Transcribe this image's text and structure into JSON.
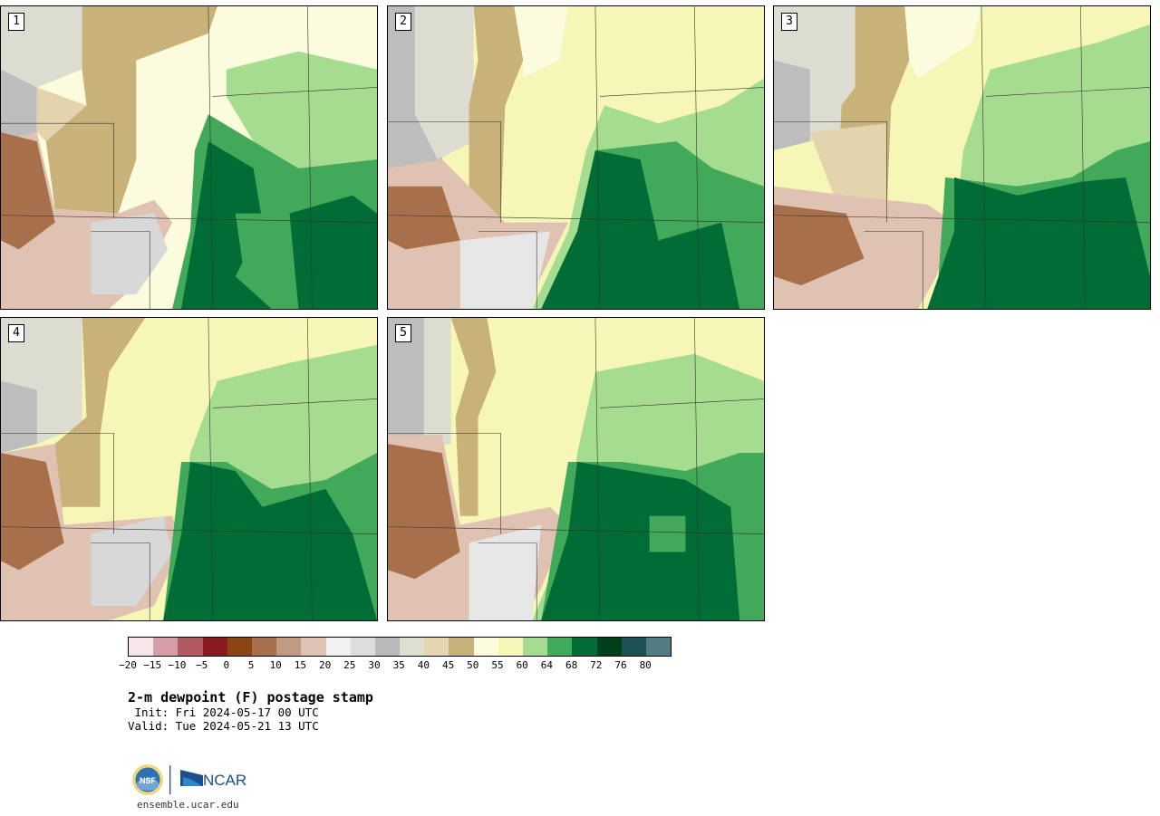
{
  "panels": [
    {
      "label": "1"
    },
    {
      "label": "2"
    },
    {
      "label": "3"
    },
    {
      "label": "4"
    },
    {
      "label": "5"
    }
  ],
  "colorbar": {
    "colors": [
      "#f5e6ea",
      "#d59da6",
      "#b25a62",
      "#8a1a22",
      "#8a4512",
      "#a8704a",
      "#c29a80",
      "#dfc2b2",
      "#f1f1f1",
      "#dddddd",
      "#bababa",
      "#dfdfcf",
      "#e6d6b0",
      "#c9b27a",
      "#fbfbdd",
      "#f6f7b6",
      "#a6dc8f",
      "#42a85a",
      "#016c36",
      "#00401c",
      "#1b5254",
      "#517c82"
    ],
    "ticks": [
      "−20",
      "−15",
      "−10",
      "−5",
      "0",
      "5",
      "10",
      "15",
      "20",
      "25",
      "30",
      "35",
      "40",
      "45",
      "50",
      "55",
      "60",
      "64",
      "68",
      "72",
      "76",
      "80"
    ]
  },
  "title": "2-m dewpoint (F) postage stamp",
  "init": " Init: Fri 2024-05-17 00 UTC",
  "valid": "Valid: Tue 2024-05-21 13 UTC",
  "logos": {
    "nsf": "NSF",
    "ncar": "NCAR"
  },
  "url": "ensemble.ucar.edu",
  "map_colors": {
    "gray_dry": "#bdbdbd",
    "light_gray": "#dcdcd0",
    "tan": "#c9b27a",
    "light_tan": "#e3d4ae",
    "brown_light": "#dfc2b2",
    "brown_mid": "#c29a80",
    "brown_dark": "#a8704a",
    "cream": "#fbfbdd",
    "yellow": "#f6f7b6",
    "light_green": "#a6dc8f",
    "mid_green": "#42a85a",
    "dark_green": "#016c36"
  }
}
